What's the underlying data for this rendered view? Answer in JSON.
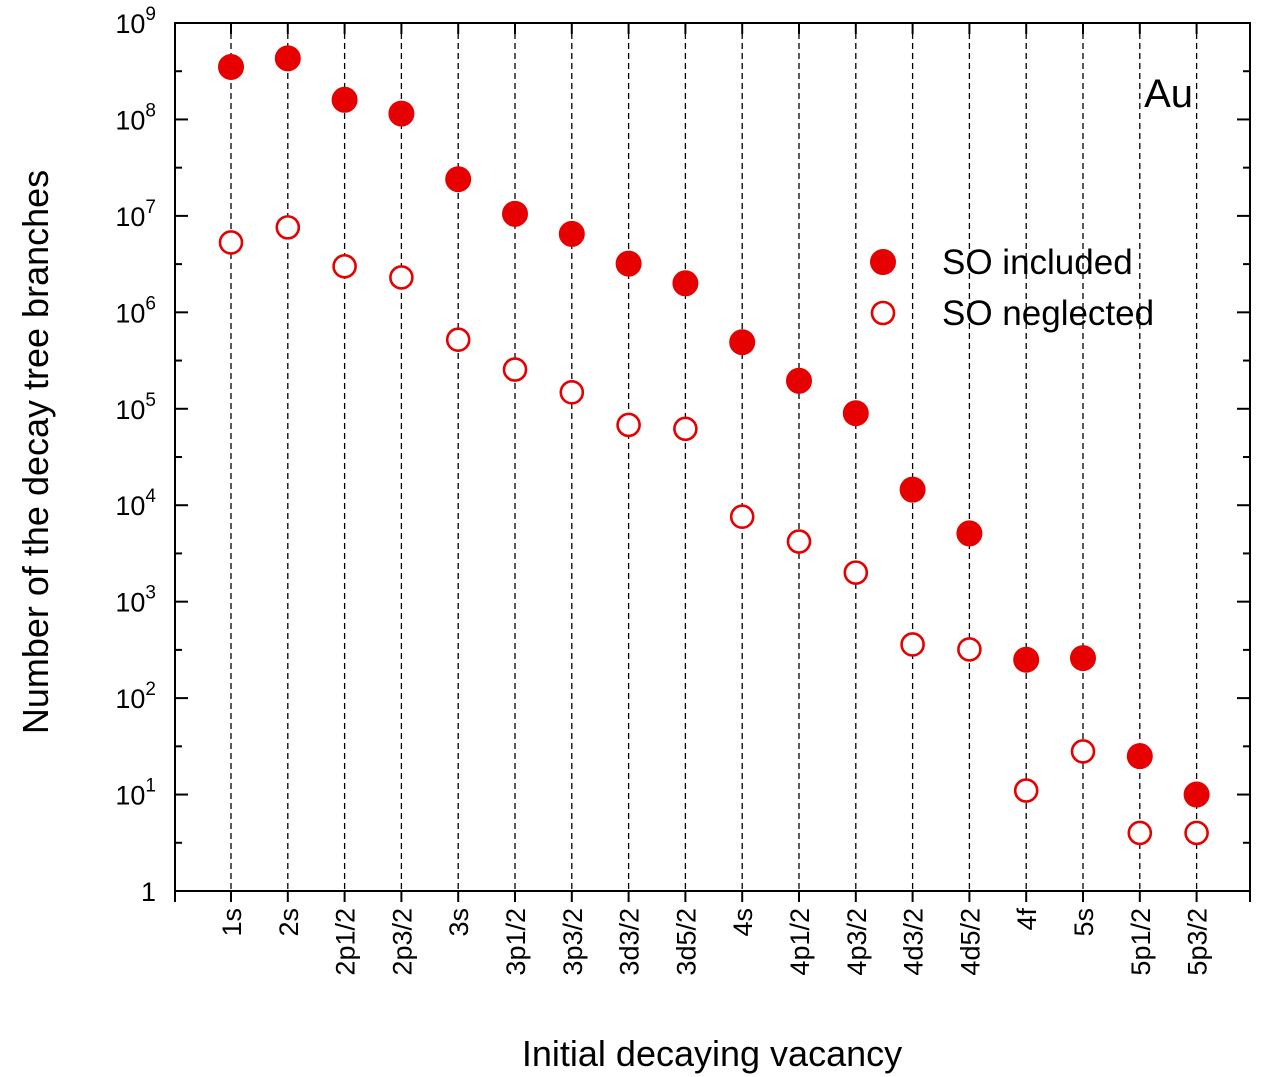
{
  "chart_data": {
    "type": "scatter",
    "title": "",
    "annotation": "Au",
    "xlabel": "Initial decaying vacancy",
    "ylabel": "Number of the decay tree branches",
    "yscale": "log",
    "ylim": [
      1,
      1000000000
    ],
    "y_ticks": [
      {
        "value": 1,
        "base": "1",
        "exp": ""
      },
      {
        "value": 10,
        "base": "10",
        "exp": "1"
      },
      {
        "value": 100,
        "base": "10",
        "exp": "2"
      },
      {
        "value": 1000,
        "base": "10",
        "exp": "3"
      },
      {
        "value": 10000,
        "base": "10",
        "exp": "4"
      },
      {
        "value": 100000,
        "base": "10",
        "exp": "5"
      },
      {
        "value": 1000000,
        "base": "10",
        "exp": "6"
      },
      {
        "value": 10000000,
        "base": "10",
        "exp": "7"
      },
      {
        "value": 100000000,
        "base": "10",
        "exp": "8"
      },
      {
        "value": 1000000000,
        "base": "10",
        "exp": "9"
      }
    ],
    "categories": [
      "1s",
      "2s",
      "2p1/2",
      "2p3/2",
      "3s",
      "3p1/2",
      "3p3/2",
      "3d3/2",
      "3d5/2",
      "4s",
      "4p1/2",
      "4p3/2",
      "4d3/2",
      "4d5/2",
      "4f",
      "5s",
      "5p1/2",
      "5p3/2"
    ],
    "legend_position": "upper-right",
    "series": [
      {
        "name": "SO included",
        "marker": "filled-circle",
        "color": "#e60000",
        "values": [
          350000000,
          430000000,
          160000000,
          115000000,
          24000000,
          10500000,
          6500000,
          3200000,
          2000000,
          490000,
          195000,
          90000,
          14500,
          5100,
          250,
          260,
          25,
          10
        ]
      },
      {
        "name": "SO neglected",
        "marker": "open-circle",
        "color": "#e60000",
        "values": [
          5300000,
          7600000,
          3000000,
          2300000,
          520000,
          255000,
          148000,
          68000,
          62000,
          7600,
          4200,
          2000,
          360,
          320,
          11,
          28,
          4,
          4
        ]
      }
    ]
  }
}
